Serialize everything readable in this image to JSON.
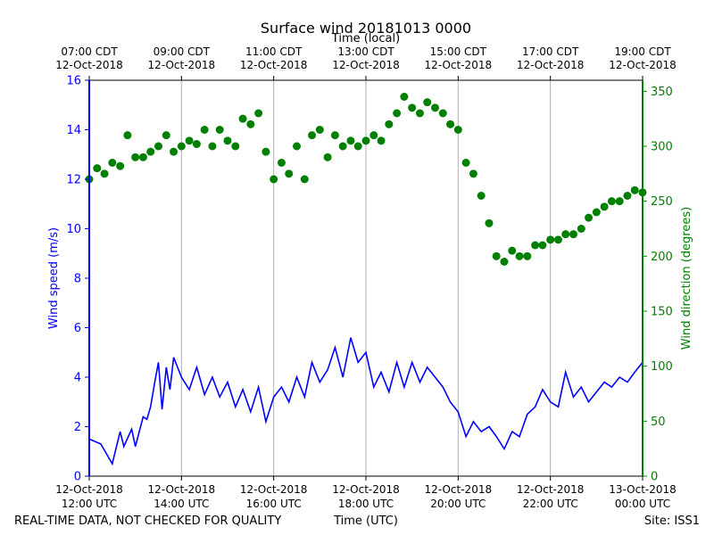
{
  "chart_data": {
    "type": "line",
    "title": "Surface wind 20181013 0000",
    "top_axis_label": "Time (local)",
    "top_ticks": [
      {
        "line1": "07:00 CDT",
        "line2": "12-Oct-2018"
      },
      {
        "line1": "09:00 CDT",
        "line2": "12-Oct-2018"
      },
      {
        "line1": "11:00 CDT",
        "line2": "12-Oct-2018"
      },
      {
        "line1": "13:00 CDT",
        "line2": "12-Oct-2018"
      },
      {
        "line1": "15:00 CDT",
        "line2": "12-Oct-2018"
      },
      {
        "line1": "17:00 CDT",
        "line2": "12-Oct-2018"
      },
      {
        "line1": "19:00 CDT",
        "line2": "12-Oct-2018"
      }
    ],
    "bottom_ticks": [
      {
        "line1": "12-Oct-2018",
        "line2": "12:00 UTC"
      },
      {
        "line1": "12-Oct-2018",
        "line2": "14:00 UTC"
      },
      {
        "line1": "12-Oct-2018",
        "line2": "16:00 UTC"
      },
      {
        "line1": "12-Oct-2018",
        "line2": "18:00 UTC"
      },
      {
        "line1": "12-Oct-2018",
        "line2": "20:00 UTC"
      },
      {
        "line1": "12-Oct-2018",
        "line2": "22:00 UTC"
      },
      {
        "line1": "13-Oct-2018",
        "line2": "00:00 UTC"
      }
    ],
    "xlabel": "Time (UTC)",
    "xlim_hours_utc": [
      12,
      24
    ],
    "left_ylabel": "Wind speed (m/s)",
    "left_ylim": [
      0,
      16
    ],
    "left_ticks": [
      "0",
      "2",
      "4",
      "6",
      "8",
      "10",
      "12",
      "14",
      "16"
    ],
    "right_ylabel": "Wind direction (degrees)",
    "right_ylim": [
      0,
      360
    ],
    "right_ticks": [
      "0",
      "50",
      "100",
      "150",
      "200",
      "250",
      "300",
      "350"
    ],
    "grid": "vertical",
    "colors": {
      "speed": "#0000ff",
      "direction": "#008000"
    },
    "speed_series": {
      "hour_utc": [
        12.0,
        12.25,
        12.5,
        12.67,
        12.75,
        12.92,
        13.0,
        13.17,
        13.25,
        13.33,
        13.42,
        13.5,
        13.58,
        13.67,
        13.75,
        13.83,
        14.0,
        14.17,
        14.33,
        14.5,
        14.67,
        14.83,
        15.0,
        15.17,
        15.33,
        15.5,
        15.67,
        15.83,
        16.0,
        16.17,
        16.33,
        16.5,
        16.67,
        16.83,
        17.0,
        17.17,
        17.33,
        17.5,
        17.67,
        17.83,
        18.0,
        18.17,
        18.33,
        18.5,
        18.67,
        18.83,
        19.0,
        19.17,
        19.33,
        19.5,
        19.67,
        19.83,
        20.0,
        20.17,
        20.33,
        20.5,
        20.67,
        20.83,
        21.0,
        21.17,
        21.33,
        21.5,
        21.67,
        21.83,
        22.0,
        22.17,
        22.33,
        22.5,
        22.67,
        22.83,
        23.0,
        23.17,
        23.33,
        23.5,
        23.67,
        23.83,
        24.0
      ],
      "speed_ms": [
        1.5,
        1.3,
        0.5,
        1.8,
        1.2,
        1.9,
        1.2,
        2.4,
        2.3,
        2.8,
        3.8,
        4.6,
        2.7,
        4.4,
        3.5,
        4.8,
        4.0,
        3.5,
        4.4,
        3.3,
        4.0,
        3.2,
        3.8,
        2.8,
        3.5,
        2.6,
        3.6,
        2.2,
        3.2,
        3.6,
        3.0,
        4.0,
        3.2,
        4.6,
        3.8,
        4.3,
        5.2,
        4.0,
        5.6,
        4.6,
        5.0,
        3.6,
        4.2,
        3.4,
        4.6,
        3.6,
        4.6,
        3.8,
        4.4,
        4.0,
        3.6,
        3.0,
        2.6,
        1.6,
        2.2,
        1.8,
        2.0,
        1.6,
        1.1,
        1.8,
        1.6,
        2.5,
        2.8,
        3.5,
        3.0,
        2.8,
        4.2,
        3.2,
        3.6,
        3.0,
        3.4,
        3.8,
        3.6,
        4.0,
        3.8,
        4.2,
        4.6
      ]
    },
    "direction_series": {
      "hour_utc": [
        12.0,
        12.17,
        12.33,
        12.5,
        12.67,
        12.83,
        13.0,
        13.17,
        13.33,
        13.5,
        13.67,
        13.83,
        14.0,
        14.17,
        14.33,
        14.5,
        14.67,
        14.83,
        15.0,
        15.17,
        15.33,
        15.5,
        15.67,
        15.83,
        16.0,
        16.17,
        16.33,
        16.5,
        16.67,
        16.83,
        17.0,
        17.17,
        17.33,
        17.5,
        17.67,
        17.83,
        18.0,
        18.17,
        18.33,
        18.5,
        18.67,
        18.83,
        19.0,
        19.17,
        19.33,
        19.5,
        19.67,
        19.83,
        20.0,
        20.17,
        20.33,
        20.5,
        20.67,
        20.83,
        21.0,
        21.17,
        21.33,
        21.5,
        21.67,
        21.83,
        22.0,
        22.17,
        22.33,
        22.5,
        22.67,
        22.83,
        23.0,
        23.17,
        23.33,
        23.5,
        23.67,
        23.83,
        24.0
      ],
      "direction_deg": [
        270,
        280,
        275,
        285,
        282,
        310,
        290,
        290,
        295,
        300,
        310,
        295,
        300,
        305,
        302,
        315,
        300,
        315,
        305,
        300,
        325,
        320,
        330,
        295,
        270,
        285,
        275,
        300,
        270,
        310,
        315,
        290,
        310,
        300,
        305,
        300,
        305,
        310,
        305,
        320,
        330,
        345,
        335,
        330,
        340,
        335,
        330,
        320,
        315,
        285,
        275,
        255,
        230,
        200,
        195,
        205,
        200,
        200,
        210,
        210,
        215,
        215,
        220,
        220,
        225,
        235,
        240,
        245,
        250,
        250,
        255,
        260,
        258
      ]
    },
    "footer_left": "REAL-TIME DATA, NOT CHECKED FOR QUALITY",
    "footer_right": "Site: ISS1"
  }
}
